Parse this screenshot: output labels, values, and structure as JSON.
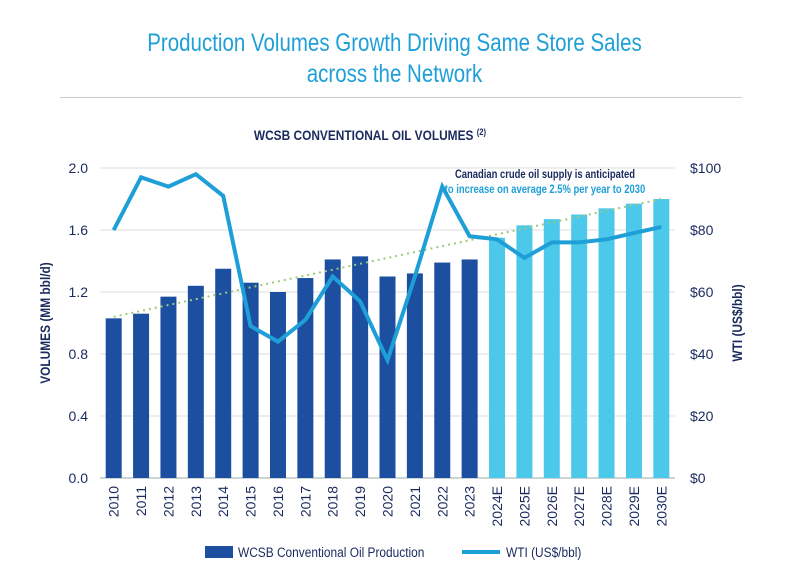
{
  "header": {
    "title_line1": "Production Volumes Growth Driving Same Store Sales",
    "title_line2": "across the Network"
  },
  "chart_data": {
    "type": "bar",
    "title": "WCSB CONVENTIONAL OIL VOLUMES",
    "title_superscript": "(2)",
    "categories": [
      "2010",
      "2011",
      "2012",
      "2013",
      "2014",
      "2015",
      "2016",
      "2017",
      "2018",
      "2019",
      "2020",
      "2021",
      "2022",
      "2023",
      "2024E",
      "2025E",
      "2026E",
      "2027E",
      "2028E",
      "2029E",
      "2030E"
    ],
    "series": [
      {
        "name": "WCSB Conventional Oil Production",
        "type": "bar",
        "axis": "left",
        "values": [
          1.03,
          1.06,
          1.17,
          1.24,
          1.35,
          1.26,
          1.2,
          1.29,
          1.41,
          1.43,
          1.3,
          1.32,
          1.39,
          1.41,
          1.55,
          1.63,
          1.67,
          1.7,
          1.74,
          1.77,
          1.8
        ],
        "colors": {
          "actual": "#1c4fa0",
          "forecast": "#4cc9ea"
        }
      },
      {
        "name": "WTI (US$/bbl)",
        "type": "line",
        "axis": "right",
        "values": [
          80,
          97,
          94,
          98,
          91,
          49,
          44,
          51,
          65,
          57,
          38,
          65,
          94,
          78,
          77,
          71,
          76,
          76,
          77,
          79,
          81
        ],
        "color": "#1f9fd8"
      },
      {
        "name": "trend",
        "type": "line",
        "style": "dotted",
        "axis": "left",
        "values": [
          1.04,
          1.8
        ],
        "x": [
          "2010",
          "2030E"
        ],
        "color": "#9cc97a"
      }
    ],
    "ylabel": "VOLUMES (MM bbl/d)",
    "ylim": [
      0,
      2.0
    ],
    "yticks": [
      "0.0",
      "0.4",
      "0.8",
      "1.2",
      "1.6",
      "2.0"
    ],
    "y2label": "WTI (US$/bbl)",
    "y2lim": [
      0,
      100
    ],
    "y2ticks": [
      "$0",
      "$20",
      "$40",
      "$60",
      "$80",
      "$100"
    ],
    "grid": true,
    "legend_position": "bottom",
    "annotation": {
      "line1": "Canadian crude oil supply is anticipated",
      "line2": "to increase on average  2.5% per year to 2030"
    }
  }
}
